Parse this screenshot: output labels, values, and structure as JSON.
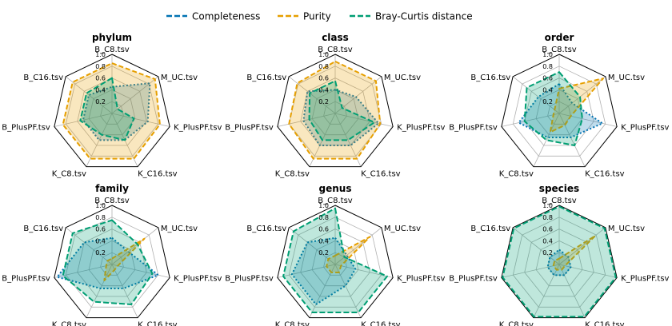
{
  "legend": [
    {
      "label": "Completeness",
      "color": "#0072b2",
      "dash": "long"
    },
    {
      "label": "Purity",
      "color": "#e69f00",
      "dash": "long"
    },
    {
      "label": "Bray-Curtis distance",
      "color": "#009e73",
      "dash": "long"
    }
  ],
  "chart_data": {
    "type": "radar",
    "axes": [
      "B_C8.tsv",
      "M_UC.tsv",
      "K_PlusPF.tsv",
      "K_C16.tsv",
      "K_C8.tsv",
      "B_PlusPF.tsv",
      "B_C16.tsv"
    ],
    "rlim": [
      0,
      1.0
    ],
    "ticks": [
      "0.2",
      "0.4",
      "0.6",
      "0.8",
      "1.0"
    ],
    "panels": [
      {
        "title": "phylum",
        "series": [
          {
            "name": "Completeness",
            "values": [
              0.45,
              0.82,
              0.62,
              0.5,
              0.5,
              0.5,
              0.5
            ]
          },
          {
            "name": "Purity",
            "values": [
              0.85,
              0.93,
              0.83,
              0.85,
              0.85,
              0.85,
              0.85
            ]
          },
          {
            "name": "Bray-Curtis distance",
            "values": [
              0.6,
              0.12,
              0.38,
              0.5,
              0.4,
              0.55,
              0.55
            ]
          }
        ]
      },
      {
        "title": "class",
        "series": [
          {
            "name": "Completeness",
            "values": [
              0.4,
              0.45,
              0.75,
              0.6,
              0.6,
              0.55,
              0.6
            ]
          },
          {
            "name": "Purity",
            "values": [
              0.88,
              0.88,
              0.78,
              0.85,
              0.85,
              0.8,
              0.82
            ]
          },
          {
            "name": "Bray-Curtis distance",
            "values": [
              0.55,
              0.15,
              0.68,
              0.5,
              0.5,
              0.45,
              0.55
            ]
          }
        ]
      },
      {
        "title": "order",
        "series": [
          {
            "name": "Completeness",
            "values": [
              0.5,
              0.28,
              0.75,
              0.45,
              0.45,
              0.7,
              0.45
            ]
          },
          {
            "name": "Purity",
            "values": [
              0.42,
              0.95,
              0.2,
              0.22,
              0.35,
              0.1,
              0.1
            ]
          },
          {
            "name": "Bray-Curtis distance",
            "values": [
              0.7,
              0.45,
              0.4,
              0.6,
              0.5,
              0.6,
              0.7
            ]
          }
        ]
      },
      {
        "title": "family",
        "series": [
          {
            "name": "Completeness",
            "values": [
              0.45,
              0.35,
              0.8,
              0.45,
              0.45,
              0.95,
              0.6
            ]
          },
          {
            "name": "Purity",
            "values": [
              0.1,
              0.7,
              0.1,
              0.1,
              0.3,
              0.1,
              0.1
            ]
          },
          {
            "name": "Bray-Curtis distance",
            "values": [
              0.75,
              0.55,
              0.7,
              0.75,
              0.7,
              0.85,
              0.85
            ]
          }
        ]
      },
      {
        "title": "genus",
        "series": [
          {
            "name": "Completeness",
            "values": [
              0.45,
              0.25,
              0.35,
              0.4,
              0.75,
              0.75,
              0.6
            ]
          },
          {
            "name": "Purity",
            "values": [
              0.15,
              0.75,
              0.1,
              0.15,
              0.15,
              0.15,
              0.15
            ]
          },
          {
            "name": "Bray-Curtis distance",
            "values": [
              0.95,
              0.2,
              0.9,
              0.9,
              0.9,
              0.9,
              0.9
            ]
          }
        ]
      },
      {
        "title": "species",
        "series": [
          {
            "name": "Completeness",
            "values": [
              0.25,
              0.2,
              0.2,
              0.2,
              0.2,
              0.2,
              0.2
            ]
          },
          {
            "name": "Purity",
            "values": [
              0.1,
              0.78,
              0.1,
              0.1,
              0.1,
              0.1,
              0.1
            ]
          },
          {
            "name": "Bray-Curtis distance",
            "values": [
              0.98,
              0.98,
              0.98,
              0.98,
              0.98,
              0.98,
              0.98
            ]
          }
        ]
      }
    ]
  }
}
